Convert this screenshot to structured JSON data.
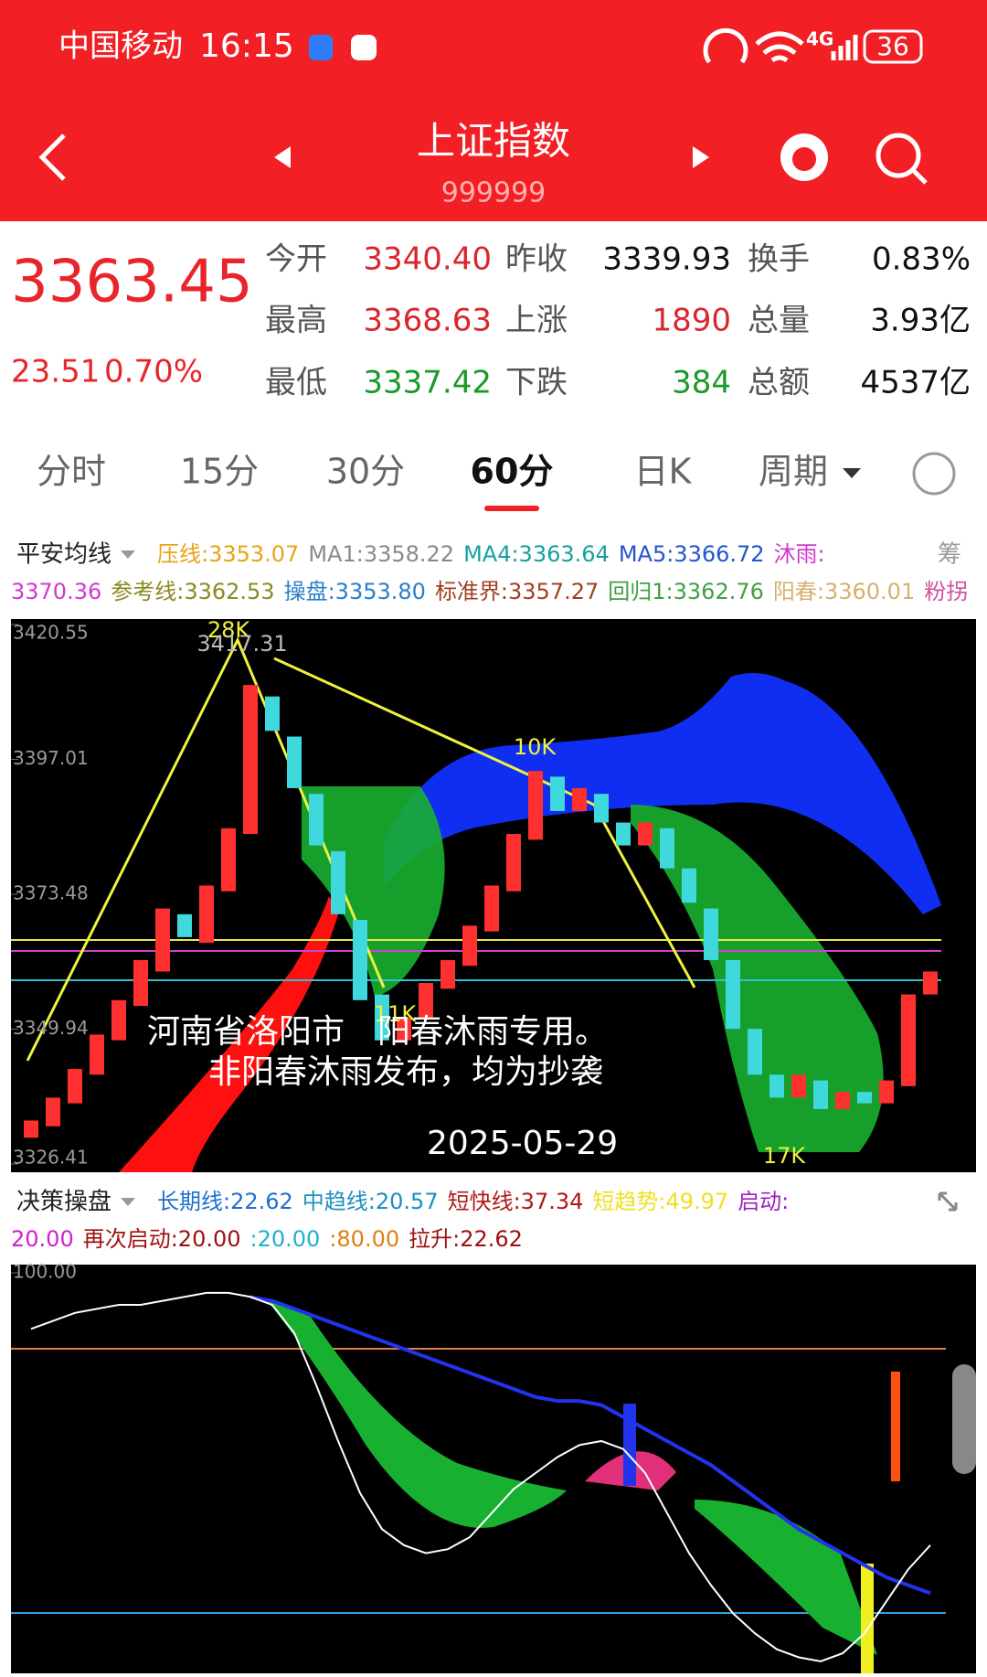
{
  "status_bar": {
    "carrier": "中国移动",
    "time": "16:15",
    "network": "4G",
    "battery": "36"
  },
  "header": {
    "title": "上证指数",
    "code": "999999"
  },
  "quote": {
    "price": "3363.45",
    "change": "23.51",
    "change_pct": "0.70%",
    "fields": [
      {
        "label": "今开",
        "value": "3340.40",
        "color": "#d9262c"
      },
      {
        "label": "昨收",
        "value": "3339.93",
        "color": "#111111"
      },
      {
        "label": "换手",
        "value": "0.83%",
        "color": "#111111"
      },
      {
        "label": "最高",
        "value": "3368.63",
        "color": "#d9262c"
      },
      {
        "label": "上涨",
        "value": "1890",
        "color": "#d9262c"
      },
      {
        "label": "总量",
        "value": "3.93亿",
        "color": "#111111"
      },
      {
        "label": "最低",
        "value": "3337.42",
        "color": "#1a9a2a"
      },
      {
        "label": "下跌",
        "value": "384",
        "color": "#1a9a2a"
      },
      {
        "label": "总额",
        "value": "4537亿",
        "color": "#111111"
      }
    ]
  },
  "tabs": {
    "items": [
      "分时",
      "15分",
      "30分",
      "60分",
      "日K",
      "周期"
    ],
    "selected": 3
  },
  "main_legend": {
    "menu": "平安均线",
    "lines": [
      [
        {
          "text": "压线:3353.07",
          "color": "#e8a317"
        },
        {
          "text": "MA1:3358.22",
          "color": "#8a8a8a"
        },
        {
          "text": "MA4:3363.64",
          "color": "#16a0a0"
        },
        {
          "text": "MA5:3366.72",
          "color": "#2255cc"
        },
        {
          "text": "沐雨:",
          "color": "#d03ad0"
        }
      ],
      [
        {
          "text": "3370.36",
          "color": "#d03ad0"
        },
        {
          "text": "参考线:3362.53",
          "color": "#8a8a20"
        },
        {
          "text": "操盘:3353.80",
          "color": "#2a7fc8"
        },
        {
          "text": "标准界:3357.27",
          "color": "#a04020"
        },
        {
          "text": "回归1:3362.76",
          "color": "#40a040"
        },
        {
          "text": "阳春:3360.01",
          "color": "#d8b070"
        },
        {
          "text": "粉拐",
          "color": "#d050a0"
        }
      ]
    ],
    "extra": "筹"
  },
  "main_chart": {
    "type": "candlestick",
    "ylim": [
      3326.41,
      3420.55
    ],
    "yticks": [
      3420.55,
      3397.01,
      3373.48,
      3349.94,
      3326.41
    ],
    "up_color": "#ff3030",
    "down_color": "#3fd8dc",
    "candles": [
      {
        "open": 3331,
        "close": 3334
      },
      {
        "open": 3333,
        "close": 3338
      },
      {
        "open": 3337,
        "close": 3343
      },
      {
        "open": 3342,
        "close": 3349
      },
      {
        "open": 3348,
        "close": 3355
      },
      {
        "open": 3354,
        "close": 3362
      },
      {
        "open": 3360,
        "close": 3371
      },
      {
        "open": 3370,
        "close": 3366
      },
      {
        "open": 3365,
        "close": 3375
      },
      {
        "open": 3374,
        "close": 3385
      },
      {
        "open": 3384,
        "close": 3410
      },
      {
        "open": 3408,
        "close": 3402
      },
      {
        "open": 3401,
        "close": 3392
      },
      {
        "open": 3391,
        "close": 3382
      },
      {
        "open": 3381,
        "close": 3370
      },
      {
        "open": 3369,
        "close": 3355
      },
      {
        "open": 3356,
        "close": 3348
      },
      {
        "open": 3348,
        "close": 3352
      },
      {
        "open": 3352,
        "close": 3358
      },
      {
        "open": 3357,
        "close": 3362
      },
      {
        "open": 3361,
        "close": 3368
      },
      {
        "open": 3367,
        "close": 3375
      },
      {
        "open": 3374,
        "close": 3384
      },
      {
        "open": 3383,
        "close": 3395
      },
      {
        "open": 3394,
        "close": 3388
      },
      {
        "open": 3388,
        "close": 3392
      },
      {
        "open": 3391,
        "close": 3386
      },
      {
        "open": 3386,
        "close": 3382
      },
      {
        "open": 3382,
        "close": 3386
      },
      {
        "open": 3385,
        "close": 3378
      },
      {
        "open": 3378,
        "close": 3372
      },
      {
        "open": 3371,
        "close": 3362
      },
      {
        "open": 3362,
        "close": 3350
      },
      {
        "open": 3350,
        "close": 3342
      },
      {
        "open": 3342,
        "close": 3338
      },
      {
        "open": 3338,
        "close": 3342
      },
      {
        "open": 3341,
        "close": 3336
      },
      {
        "open": 3336,
        "close": 3339
      },
      {
        "open": 3339,
        "close": 3337
      },
      {
        "open": 3337,
        "close": 3341
      },
      {
        "open": 3340,
        "close": 3356
      },
      {
        "open": 3356,
        "close": 3360
      }
    ],
    "annotations": [
      "28K",
      "3417.31",
      "10K",
      "11K",
      "17K"
    ],
    "watermark": [
      "河南省洛阳市　阳春沐雨专用。",
      "非阳春沐雨发布，均为抄袭",
      "2025-05-29"
    ]
  },
  "sub_legend": {
    "menu": "决策操盘",
    "lines": [
      [
        {
          "text": "长期线:22.62",
          "color": "#1e6fd0"
        },
        {
          "text": "中趋线:20.57",
          "color": "#1e8fc0"
        },
        {
          "text": "短快线:37.34",
          "color": "#b01818"
        },
        {
          "text": "短趋势:49.97",
          "color": "#f0e020"
        },
        {
          "text": "启动:",
          "color": "#a020c0"
        }
      ],
      [
        {
          "text": "20.00",
          "color": "#d020d0"
        },
        {
          "text": "再次启动:20.00",
          "color": "#a01010"
        },
        {
          "text": ":20.00",
          "color": "#20b0d0"
        },
        {
          "text": ":80.00",
          "color": "#e08010"
        },
        {
          "text": "拉升:22.62",
          "color": "#a01010"
        }
      ]
    ]
  },
  "sub_chart": {
    "type": "line",
    "ylim": [
      0,
      100
    ],
    "yticks": [
      {
        "value": 100,
        "label": "100.00"
      }
    ],
    "series": [
      {
        "color": "#2233ee",
        "values": [
          null,
          null,
          null,
          null,
          null,
          null,
          null,
          null,
          null,
          null,
          94,
          93,
          91,
          89,
          87,
          85,
          83,
          81,
          79,
          77,
          75,
          73,
          71,
          69,
          68,
          68,
          67,
          64,
          61,
          58,
          55,
          52,
          48,
          44,
          40,
          36,
          33,
          30,
          27,
          24,
          22,
          20
        ]
      },
      {
        "color": "#ffffff",
        "values": [
          86,
          88,
          90,
          91,
          92,
          92,
          93,
          94,
          95,
          95,
          94,
          92,
          85,
          72,
          58,
          45,
          36,
          32,
          30,
          31,
          34,
          40,
          46,
          50,
          54,
          57,
          58,
          56,
          50,
          40,
          30,
          22,
          15,
          10,
          6,
          4,
          3,
          5,
          10,
          18,
          26,
          32
        ]
      }
    ]
  }
}
